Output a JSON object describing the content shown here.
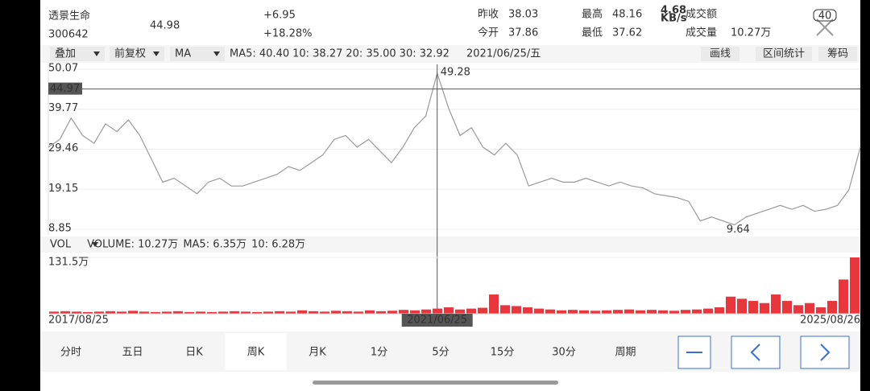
{
  "status_bar": {
    "speed": "4.68",
    "speed_unit": "KB/s",
    "battery": "40"
  },
  "header": {
    "name": "透景生命",
    "code": "300642",
    "price": "44.98",
    "change": "+6.95",
    "change_pct": "+18.28%",
    "stats": [
      {
        "label": "昨收",
        "value": "38.03",
        "color": "#333333"
      },
      {
        "label": "今开",
        "value": "37.86",
        "color": "#1a9c3b"
      },
      {
        "label": "最高",
        "value": "48.16",
        "color": "#e8373c"
      },
      {
        "label": "最低",
        "value": "37.62",
        "color": "#1a9c3b"
      },
      {
        "label": "成交额",
        "value": null,
        "color": "#333333"
      },
      {
        "label": "成交量",
        "value": "10.27万",
        "color": "#333333"
      }
    ]
  },
  "toolbar": {
    "overlay": "叠加",
    "adjust": "前复权",
    "indicator": "MA",
    "ma": [
      {
        "text": "MA5: 40.40",
        "color": "#555555"
      },
      {
        "text": "10: 38.27",
        "color": "#c9b400"
      },
      {
        "text": "20: 35.00",
        "color": "#c333c9"
      },
      {
        "text": "30: 32.92",
        "color": "#3a9d2a"
      }
    ],
    "date": "2021/06/25/五",
    "tools": [
      "画线",
      "区间统计",
      "筹码"
    ]
  },
  "chart_data": [
    {
      "type": "line",
      "color": "#9a9a9a",
      "ylim": [
        8.85,
        50.07
      ],
      "yticks": [
        8.85,
        19.15,
        29.46,
        39.77,
        50.07
      ],
      "grid": true,
      "values": [
        30,
        32,
        37.5,
        33,
        31,
        36,
        34,
        37,
        33,
        27,
        21,
        22,
        20,
        18,
        21,
        22,
        20,
        20,
        21,
        22,
        23,
        25,
        24,
        26,
        28,
        32,
        33,
        30,
        32,
        29,
        26,
        30,
        35,
        38,
        49,
        40,
        33,
        35,
        30,
        28,
        31,
        28,
        20,
        21,
        22,
        21,
        21,
        22,
        21,
        20,
        21,
        20,
        19.5,
        18,
        17.5,
        17,
        16,
        11,
        12,
        11,
        10,
        12,
        13,
        14,
        15,
        14,
        15,
        13.5,
        14,
        15,
        19,
        30
      ],
      "max_label": 49.28,
      "min_label": 9.64,
      "crosshair_value": 44.97
    },
    {
      "type": "bar",
      "color": "#e8373c",
      "ylim": [
        0,
        131.5
      ],
      "yticks": [
        {
          "value": 131.5,
          "label": "131.5万"
        }
      ],
      "legend": [
        {
          "text": "VOL",
          "color": "#333333"
        },
        {
          "text": "VOLUME: 10.27万",
          "color": "#555555"
        },
        {
          "text": "MA5: 6.35万",
          "color": "#c9b400"
        },
        {
          "text": "10: 6.28万",
          "color": "#c333c9"
        }
      ],
      "values": [
        5,
        6,
        5,
        4,
        5,
        6,
        5,
        7,
        5,
        4,
        5,
        6,
        4,
        5,
        4,
        5,
        6,
        5,
        4,
        5,
        6,
        5,
        8,
        6,
        5,
        7,
        6,
        5,
        8,
        6,
        7,
        9,
        8,
        10,
        12,
        15,
        10,
        12,
        14,
        45,
        20,
        18,
        15,
        12,
        10,
        8,
        9,
        8,
        7,
        8,
        9,
        10,
        8,
        9,
        8,
        7,
        9,
        10,
        12,
        15,
        40,
        35,
        30,
        25,
        45,
        30,
        20,
        25,
        15,
        30,
        80,
        131.5
      ],
      "x_start": "2017/08/25",
      "x_end": "2025/08/26",
      "crosshair_date": "2021/06/25"
    }
  ],
  "tabs": [
    "分时",
    "五日",
    "日K",
    "周K",
    "月K",
    "1分",
    "5分",
    "15分",
    "30分",
    "周期"
  ],
  "active_tab": "周K"
}
